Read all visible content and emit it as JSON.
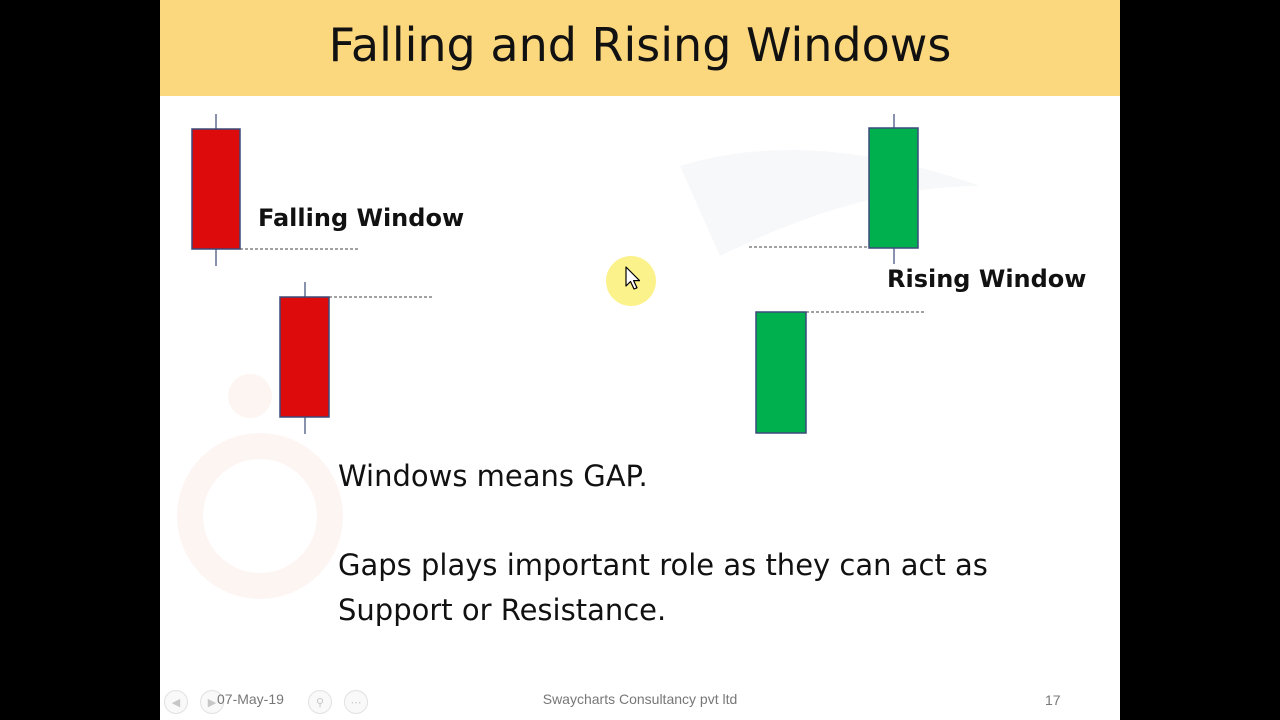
{
  "slide": {
    "title": "Falling and Rising Windows",
    "falling_label": "Falling Window",
    "rising_label": "Rising Window",
    "paragraph1": "Windows means GAP.",
    "paragraph2_line1": "Gaps plays important role as they can act as",
    "paragraph2_line2": "Support or Resistance."
  },
  "footer": {
    "date": "07-May-19",
    "company": "Swaycharts Consultancy pvt ltd",
    "page_number": "17"
  },
  "colors": {
    "title_bar": "#fbd77e",
    "bearish": "#dd0b0b",
    "bullish": "#00b04f",
    "candle_border": "#3a4a7a",
    "cursor_highlight": "#faf078"
  },
  "icons": [
    "cursor-icon",
    "prev-slide-icon",
    "next-slide-icon",
    "zoom-icon",
    "more-options-icon"
  ]
}
